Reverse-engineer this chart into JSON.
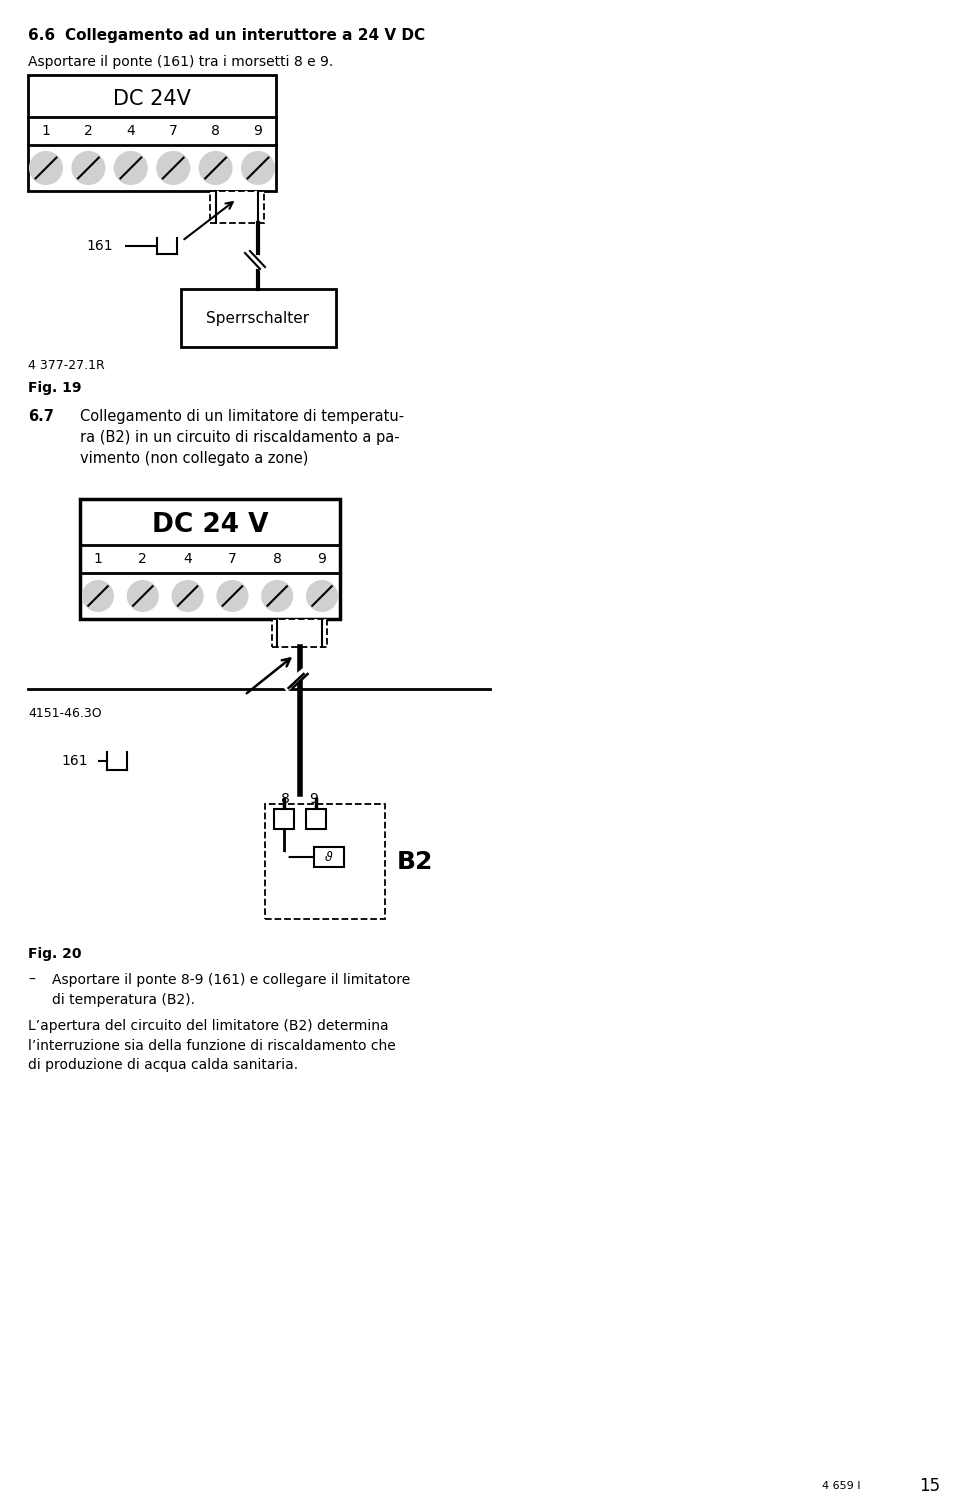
{
  "bg_color": "#ffffff",
  "title1_num": "6.6",
  "title1_text": "Collegamento ad un interuttore a 24 V DC",
  "subtitle1": "Asportare il ponte (161) tra i morsetti 8 e 9.",
  "section2_num": "6.7",
  "section2_text": "Collegamento di un limitatore di temperatu-\nra (B2) in un circuito di riscaldamento a pa-\nvimento (non collegato a zone)",
  "fig19_label": "Fig. 19",
  "fig19_ref": "4 377-27.1R",
  "fig20_label": "Fig. 20",
  "fig20_ref": "4151-46.3O",
  "dc24v_label": "DC 24V",
  "dc24v_label2": "DC 24 V",
  "terminal_labels": [
    "1",
    "2",
    "4",
    "7",
    "8",
    "9"
  ],
  "sperrschalter_label": "Sperrschalter",
  "b2_label": "B2",
  "label_161": "161",
  "bullet1_dash": "–",
  "bullet1_text": "Asportare il ponte 8-9 (161) e collegare il limitatore\ndi temperatura (B2).",
  "para1": "L’apertura del circuito del limitatore (B2) determina\nl’interruzione sia della funzione di riscaldamento che\ndi produzione di acqua calda sanitaria.",
  "page_num": "15",
  "page_ref": "4 659 I"
}
